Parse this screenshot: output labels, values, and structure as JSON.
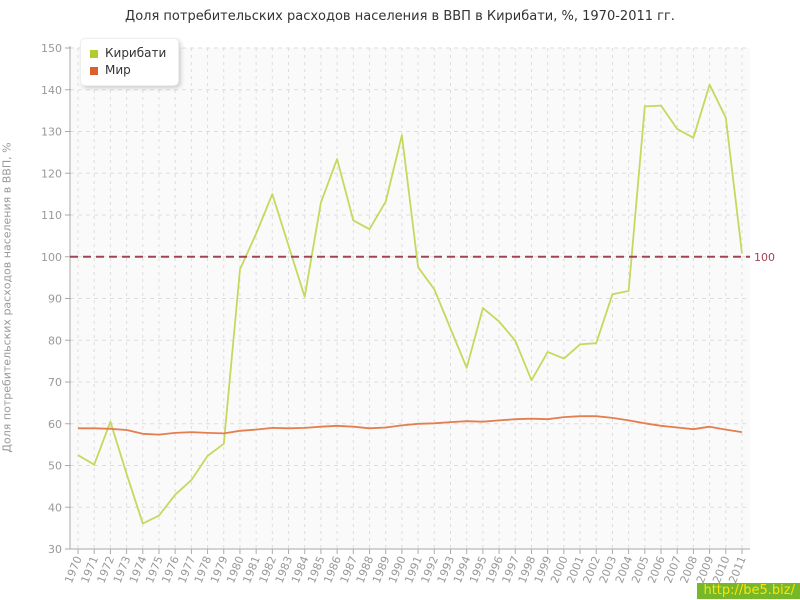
{
  "title": "Доля потребительских расходов населения в ВВП в Кирибати, %, 1970-2011 гг.",
  "watermark": "http://be5.biz/",
  "chart_data": {
    "type": "line",
    "x": [
      1970,
      1971,
      1972,
      1973,
      1974,
      1975,
      1976,
      1977,
      1978,
      1979,
      1980,
      1981,
      1982,
      1983,
      1984,
      1985,
      1986,
      1987,
      1988,
      1989,
      1990,
      1991,
      1992,
      1993,
      1994,
      1995,
      1996,
      1997,
      1998,
      1999,
      2000,
      2001,
      2002,
      2003,
      2004,
      2005,
      2006,
      2007,
      2008,
      2009,
      2010,
      2011
    ],
    "series": [
      {
        "name": "Кирибати",
        "color": "#b0cc2f",
        "line_color": "#c6d85e",
        "values": [
          52.5,
          50.2,
          60.5,
          48,
          36.1,
          38,
          43,
          46.5,
          52.3,
          55.2,
          97,
          105.5,
          115,
          102.7,
          90.4,
          113,
          123.4,
          108.7,
          106.6,
          113.2,
          129.1,
          97.5,
          92.2,
          82.8,
          73.4,
          87.7,
          84.5,
          79.9,
          70.4,
          77.2,
          75.6,
          79,
          79.3,
          91,
          91.8,
          136,
          136.2,
          130.6,
          128.5,
          141.2,
          133.3,
          100.8
        ]
      },
      {
        "name": "Мир",
        "color": "#dd5f2b",
        "line_color": "#e57e4f",
        "values": [
          58.9,
          58.9,
          58.8,
          58.5,
          57.6,
          57.4,
          57.8,
          58,
          57.8,
          57.7,
          58.3,
          58.6,
          59,
          58.9,
          59,
          59.3,
          59.5,
          59.3,
          58.9,
          59.1,
          59.6,
          60,
          60.1,
          60.4,
          60.6,
          60.5,
          60.8,
          61.1,
          61.2,
          61.1,
          61.6,
          61.8,
          61.8,
          61.4,
          60.8,
          60.1,
          59.5,
          59.1,
          58.7,
          59.3,
          58.6,
          58
        ]
      }
    ],
    "ylabel": "Доля потребительских расходов населения в ВВП, %",
    "xlabel": "",
    "ylim": [
      30,
      150
    ],
    "ytick_step": 10,
    "refline": {
      "value": 100,
      "label": "100",
      "color": "#a04455"
    },
    "grid": true,
    "legend_position": "top-left",
    "colors": {
      "grid": "#dddddd",
      "axis": "#aaaaaa",
      "tick_label": "#999999",
      "plot_bg": "#fafafa"
    }
  }
}
